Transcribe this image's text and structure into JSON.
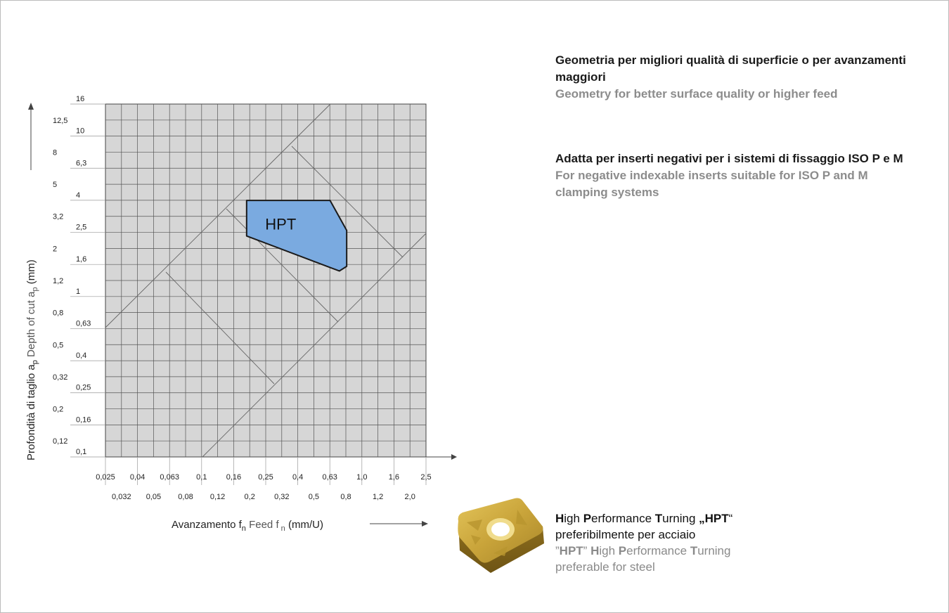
{
  "chart_data": {
    "type": "area",
    "x_scale": "log",
    "y_scale": "log",
    "x_ticks_top": [
      "0,025",
      "0,04",
      "0,063",
      "0,1",
      "0,16",
      "0,25",
      "0,4",
      "0,63",
      "1,0",
      "1,6",
      "2,5"
    ],
    "x_ticks_bottom": [
      "0,032",
      "0,05",
      "0,08",
      "0,12",
      "0,2",
      "0,32",
      "0,5",
      "0,8",
      "1,2",
      "2,0"
    ],
    "y_ticks_major": [
      "0,1",
      "0,16",
      "0,25",
      "0,4",
      "0,63",
      "1",
      "1,6",
      "2,5",
      "4",
      "6,3",
      "10",
      "16"
    ],
    "y_ticks_minor": [
      "0,12",
      "0,2",
      "0,32",
      "0,5",
      "0,8",
      "1,2",
      "2",
      "3,2",
      "5",
      "8",
      "12,5"
    ],
    "xlim": [
      0.025,
      2.5
    ],
    "ylim": [
      0.1,
      16
    ],
    "grid": true,
    "region": {
      "name": "HPT",
      "points": [
        [
          0.19,
          4.0
        ],
        [
          0.63,
          4.0
        ],
        [
          0.8,
          2.6
        ],
        [
          0.8,
          1.55
        ],
        [
          0.72,
          1.45
        ],
        [
          0.19,
          2.4
        ]
      ],
      "color": "#7aaae0"
    },
    "xlabel": {
      "it": "Avanzamento f",
      "it_sub": "n",
      "en": "Feed f",
      "en_sub": "n",
      "unit": "(mm/U)"
    },
    "ylabel": {
      "it": "Profondità di taglio a",
      "it_sub": "p",
      "en": "Depth of cut a",
      "en_sub": "p",
      "unit": "(mm)"
    }
  },
  "text": {
    "block1_it": "Geometria per migliori qualità di superficie o per avanzamenti maggiori",
    "block1_en": "Geometry for better surface quality or higher feed",
    "block2_it": "Adatta per inserti negativi per i sistemi di fissaggio ISO P e M",
    "block2_en": "For negative indexable inserts suitable for ISO P and M clamping systems",
    "block3_line1_H": "H",
    "block3_line1_igh": "igh ",
    "block3_line1_P": "P",
    "block3_line1_erf": "erformance ",
    "block3_line1_T": "T",
    "block3_line1_urn": "urning ",
    "block3_line1_q1": "„",
    "block3_line1_hpt": "HPT",
    "block3_line1_q2": "“",
    "block3_line2": "preferibilmente per acciaio",
    "block3_line3_q1": "”",
    "block3_line3_hpt": "HPT",
    "block3_line3_q2": "” ",
    "block3_line3_H": "H",
    "block3_line3_igh": "igh ",
    "block3_line3_P": "P",
    "block3_line3_erf": "erformance ",
    "block3_line3_T": "T",
    "block3_line3_urn": "urning",
    "block3_line4": "preferable for steel"
  },
  "colors": {
    "plot_bg": "#d6d6d6",
    "grid": "#555555",
    "region_fill": "#7aaae0",
    "region_stroke": "#1a1a1a",
    "insert": "#c9a43a"
  }
}
